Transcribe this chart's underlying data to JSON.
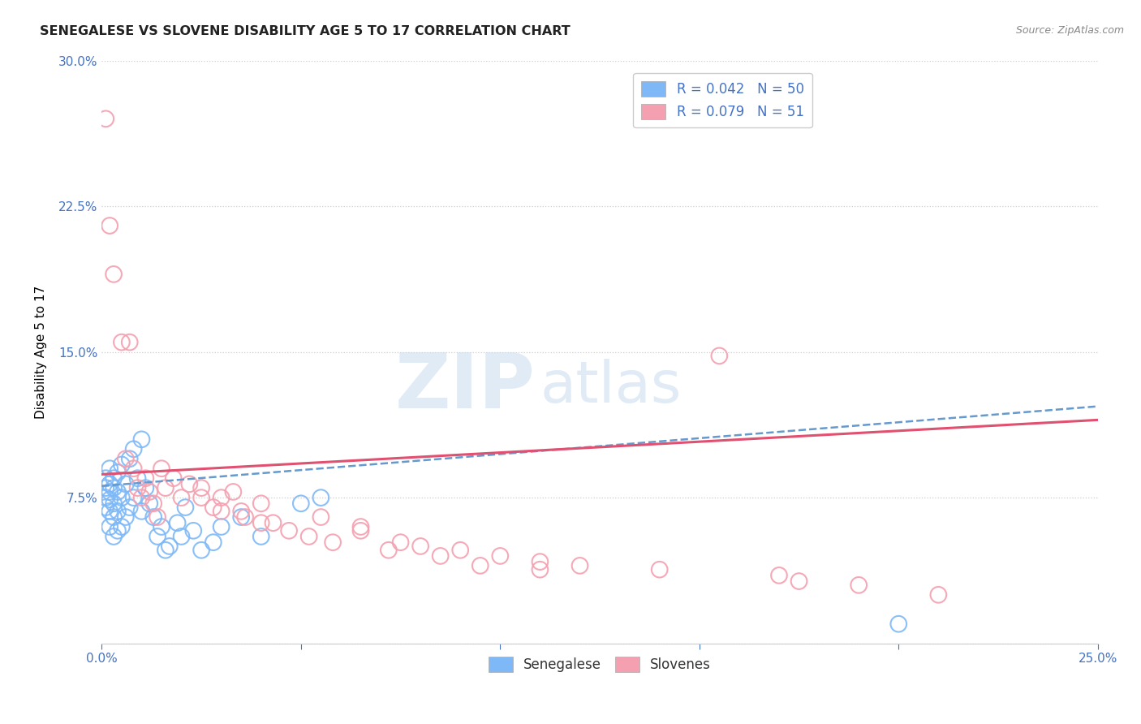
{
  "title": "SENEGALESE VS SLOVENE DISABILITY AGE 5 TO 17 CORRELATION CHART",
  "source": "Source: ZipAtlas.com",
  "ylabel": "Disability Age 5 to 17",
  "xlim": [
    0.0,
    0.25
  ],
  "ylim": [
    0.0,
    0.3
  ],
  "xticks": [
    0.0,
    0.05,
    0.1,
    0.15,
    0.2,
    0.25
  ],
  "yticks": [
    0.0,
    0.075,
    0.15,
    0.225,
    0.3
  ],
  "xticklabels": [
    "0.0%",
    "",
    "",
    "",
    "",
    "25.0%"
  ],
  "yticklabels": [
    "",
    "7.5%",
    "15.0%",
    "22.5%",
    "30.0%"
  ],
  "senegalese_color": "#7EB8F7",
  "slovene_color": "#F4A0B0",
  "trend_senegalese_color": "#6699CC",
  "trend_slovene_color": "#E05070",
  "background_color": "#FFFFFF",
  "sen_R": 0.042,
  "sen_N": 50,
  "slo_R": 0.079,
  "slo_N": 51,
  "senegalese_x": [
    0.001,
    0.001,
    0.001,
    0.001,
    0.002,
    0.002,
    0.002,
    0.002,
    0.002,
    0.002,
    0.003,
    0.003,
    0.003,
    0.003,
    0.003,
    0.004,
    0.004,
    0.004,
    0.004,
    0.005,
    0.005,
    0.005,
    0.006,
    0.006,
    0.007,
    0.007,
    0.008,
    0.008,
    0.009,
    0.01,
    0.01,
    0.011,
    0.012,
    0.013,
    0.014,
    0.015,
    0.016,
    0.017,
    0.019,
    0.02,
    0.021,
    0.023,
    0.025,
    0.028,
    0.03,
    0.035,
    0.04,
    0.05,
    0.055,
    0.2
  ],
  "senegalese_y": [
    0.085,
    0.08,
    0.075,
    0.07,
    0.09,
    0.082,
    0.078,
    0.074,
    0.068,
    0.06,
    0.085,
    0.08,
    0.072,
    0.065,
    0.055,
    0.088,
    0.078,
    0.068,
    0.058,
    0.092,
    0.075,
    0.06,
    0.082,
    0.065,
    0.095,
    0.07,
    0.1,
    0.075,
    0.085,
    0.105,
    0.068,
    0.08,
    0.072,
    0.065,
    0.055,
    0.06,
    0.048,
    0.05,
    0.062,
    0.055,
    0.07,
    0.058,
    0.048,
    0.052,
    0.06,
    0.065,
    0.055,
    0.072,
    0.075,
    0.01
  ],
  "slovene_x": [
    0.001,
    0.002,
    0.003,
    0.005,
    0.006,
    0.007,
    0.008,
    0.009,
    0.01,
    0.011,
    0.012,
    0.013,
    0.014,
    0.015,
    0.016,
    0.018,
    0.02,
    0.022,
    0.025,
    0.028,
    0.03,
    0.033,
    0.036,
    0.04,
    0.043,
    0.047,
    0.052,
    0.058,
    0.065,
    0.072,
    0.08,
    0.09,
    0.1,
    0.11,
    0.12,
    0.14,
    0.155,
    0.17,
    0.19,
    0.21,
    0.025,
    0.03,
    0.035,
    0.04,
    0.055,
    0.065,
    0.075,
    0.085,
    0.095,
    0.11,
    0.175
  ],
  "slovene_y": [
    0.27,
    0.215,
    0.19,
    0.155,
    0.095,
    0.155,
    0.09,
    0.08,
    0.075,
    0.085,
    0.078,
    0.072,
    0.065,
    0.09,
    0.08,
    0.085,
    0.075,
    0.082,
    0.075,
    0.07,
    0.068,
    0.078,
    0.065,
    0.072,
    0.062,
    0.058,
    0.055,
    0.052,
    0.06,
    0.048,
    0.05,
    0.048,
    0.045,
    0.042,
    0.04,
    0.038,
    0.148,
    0.035,
    0.03,
    0.025,
    0.08,
    0.075,
    0.068,
    0.062,
    0.065,
    0.058,
    0.052,
    0.045,
    0.04,
    0.038,
    0.032
  ],
  "trend_sen_x0": 0.0,
  "trend_sen_y0": 0.081,
  "trend_sen_x1": 0.25,
  "trend_sen_y1": 0.122,
  "trend_slo_x0": 0.0,
  "trend_slo_y0": 0.087,
  "trend_slo_x1": 0.25,
  "trend_slo_y1": 0.115
}
